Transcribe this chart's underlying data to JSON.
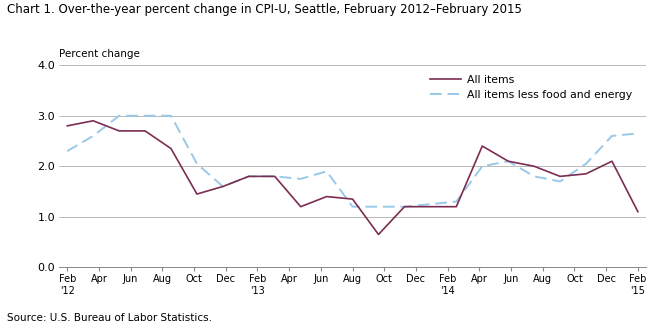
{
  "title": "Chart 1. Over-the-year percent change in CPI-U, Seattle, February 2012–February 2015",
  "ylabel": "Percent change",
  "source": "Source: U.S. Bureau of Labor Statistics.",
  "ylim": [
    0.0,
    4.0
  ],
  "yticks": [
    0.0,
    1.0,
    2.0,
    3.0,
    4.0
  ],
  "all_items": [
    2.8,
    2.9,
    2.7,
    2.7,
    2.35,
    1.45,
    1.6,
    1.8,
    1.8,
    1.2,
    1.4,
    1.35,
    0.65,
    1.2,
    1.2,
    1.2,
    2.4,
    2.1,
    2.0,
    1.8,
    1.85,
    2.1,
    1.1
  ],
  "all_items_less": [
    2.3,
    2.6,
    3.0,
    3.0,
    3.0,
    2.05,
    1.6,
    1.8,
    1.8,
    1.75,
    1.9,
    1.2,
    1.2,
    1.2,
    1.25,
    1.3,
    2.0,
    2.1,
    1.8,
    1.7,
    2.05,
    2.6,
    2.65
  ],
  "tick_labels": [
    "Feb\n'12",
    "Apr",
    "Jun",
    "Aug",
    "Oct",
    "Dec",
    "Feb\n'13",
    "Apr",
    "Jun",
    "Aug",
    "Oct",
    "Dec",
    "Feb\n'14",
    "Apr",
    "Jun",
    "Aug",
    "Oct",
    "Dec",
    "Feb\n'15"
  ],
  "color_all_items": "#7B2D52",
  "color_less": "#99C8E8",
  "background_color": "#ffffff",
  "legend_label_1": "All items",
  "legend_label_2": "All items less food and energy"
}
